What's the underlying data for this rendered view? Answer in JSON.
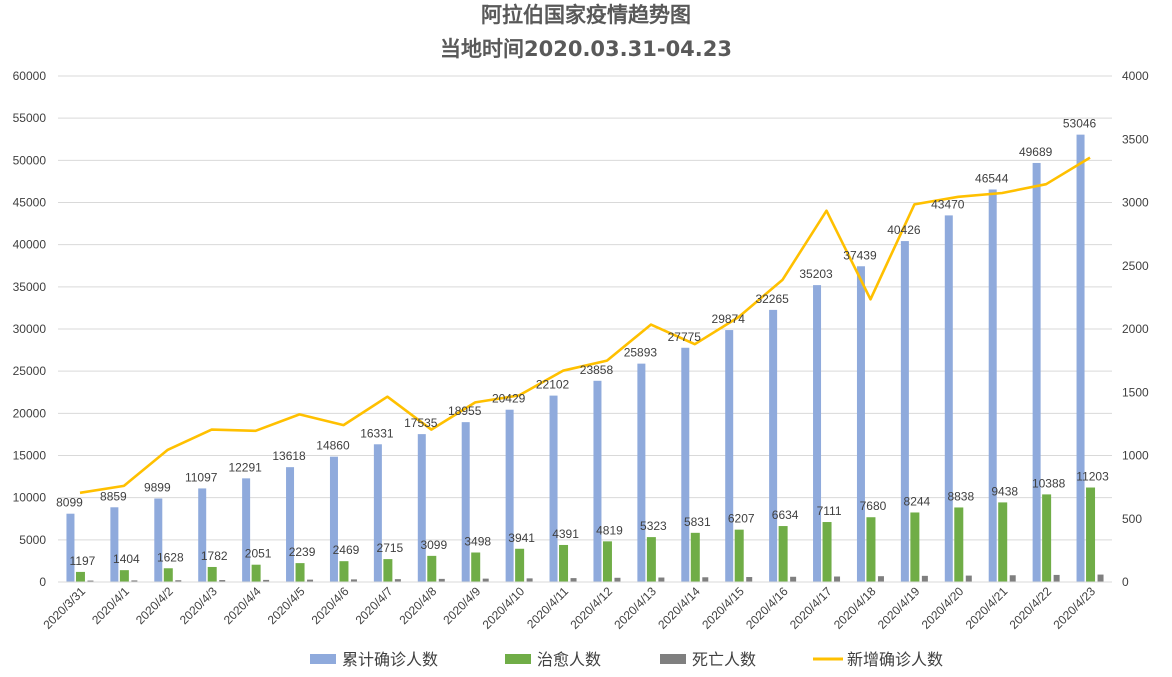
{
  "chart_data": {
    "type": "bar",
    "title": "阿拉伯国家疫情趋势图",
    "subtitle": "当地时间2020.03.31-04.23",
    "categories": [
      "2020/3/31",
      "2020/4/1",
      "2020/4/2",
      "2020/4/3",
      "2020/4/4",
      "2020/4/5",
      "2020/4/6",
      "2020/4/7",
      "2020/4/8",
      "2020/4/9",
      "2020/4/10",
      "2020/4/11",
      "2020/4/12",
      "2020/4/13",
      "2020/4/14",
      "2020/4/15",
      "2020/4/16",
      "2020/4/17",
      "2020/4/18",
      "2020/4/19",
      "2020/4/20",
      "2020/4/21",
      "2020/4/22",
      "2020/4/23"
    ],
    "ylim_left": [
      0,
      60000
    ],
    "yticks_left": [
      0,
      5000,
      10000,
      15000,
      20000,
      25000,
      30000,
      35000,
      40000,
      45000,
      50000,
      55000,
      60000
    ],
    "ylim_right": [
      0,
      4000
    ],
    "yticks_right": [
      0,
      500,
      1000,
      1500,
      2000,
      2500,
      3000,
      3500,
      4000
    ],
    "grid": true,
    "legend_position": "bottom",
    "series": [
      {
        "name": "累计确诊人数",
        "type": "bar",
        "axis": "left",
        "color": "#8faadc",
        "labeled": true,
        "values": [
          8099,
          8859,
          9899,
          11097,
          12291,
          13618,
          14860,
          16331,
          17535,
          18955,
          20429,
          22102,
          23858,
          25893,
          27775,
          29874,
          32265,
          35203,
          37439,
          40426,
          43470,
          46544,
          49689,
          53046
        ]
      },
      {
        "name": "治愈人数",
        "type": "bar",
        "axis": "left",
        "color": "#70ad47",
        "labeled": true,
        "values": [
          1197,
          1404,
          1628,
          1782,
          2051,
          2239,
          2469,
          2715,
          3099,
          3498,
          3941,
          4391,
          4819,
          5323,
          5831,
          6207,
          6634,
          7111,
          7680,
          8244,
          8838,
          9438,
          10388,
          11203
        ]
      },
      {
        "name": "死亡人数",
        "type": "bar",
        "axis": "left",
        "color": "#7f7f7f",
        "labeled": false,
        "values": [
          170,
          190,
          210,
          230,
          250,
          280,
          310,
          340,
          370,
          400,
          430,
          460,
          500,
          530,
          560,
          590,
          620,
          650,
          690,
          730,
          760,
          800,
          840,
          880
        ]
      },
      {
        "name": "新增确诊人数",
        "type": "line",
        "axis": "right",
        "color": "#ffc000",
        "labeled": false,
        "values": [
          705,
          760,
          1045,
          1205,
          1195,
          1325,
          1240,
          1465,
          1205,
          1420,
          1475,
          1670,
          1750,
          2035,
          1880,
          2095,
          2390,
          2935,
          2235,
          2985,
          3045,
          3075,
          3145,
          3355
        ]
      }
    ]
  }
}
